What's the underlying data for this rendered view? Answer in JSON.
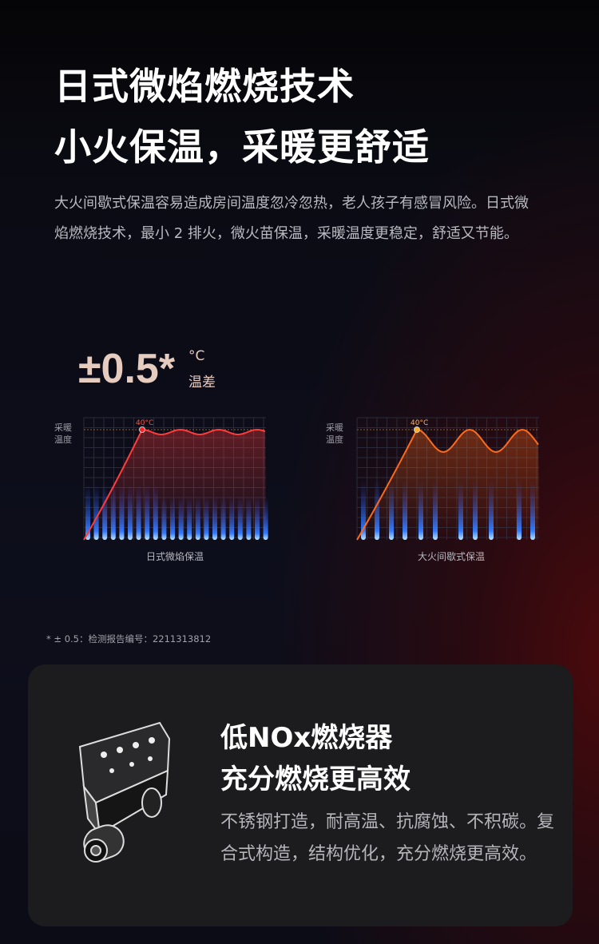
{
  "headline": {
    "line1": "日式微焰燃烧技术",
    "line2": "小火保温，采暖更舒适"
  },
  "description": "大火间歇式保温容易造成房间温度忽冷忽热，老人孩子有感冒风险。日式微焰燃烧技术，最小 2 排火，微火苗保温，采暖温度更稳定，舒适又节能。",
  "stat": {
    "value": "±0.5*",
    "unit": "°C",
    "label": "温差"
  },
  "charts": [
    {
      "ylabel_line1": "采暖",
      "ylabel_line2": "温度",
      "peak_label": "40°C",
      "caption": "日式微焰保温",
      "curve_color": "#ff3b3b"
    },
    {
      "ylabel_line1": "采暖",
      "ylabel_line2": "温度",
      "peak_label": "40°C",
      "caption": "大火间歇式保温",
      "curve_color": "#ff6a1a"
    }
  ],
  "footnote": "* ± 0.5：检测报告编号：2211313812",
  "feature": {
    "title_line1": "低NOx燃烧器",
    "title_line2": "充分燃烧更高效",
    "body": "不锈钢打造，耐高温、抗腐蚀、不积碳。复合式构造，结构优化，充分燃烧更高效。",
    "image": "burner-illustration"
  }
}
